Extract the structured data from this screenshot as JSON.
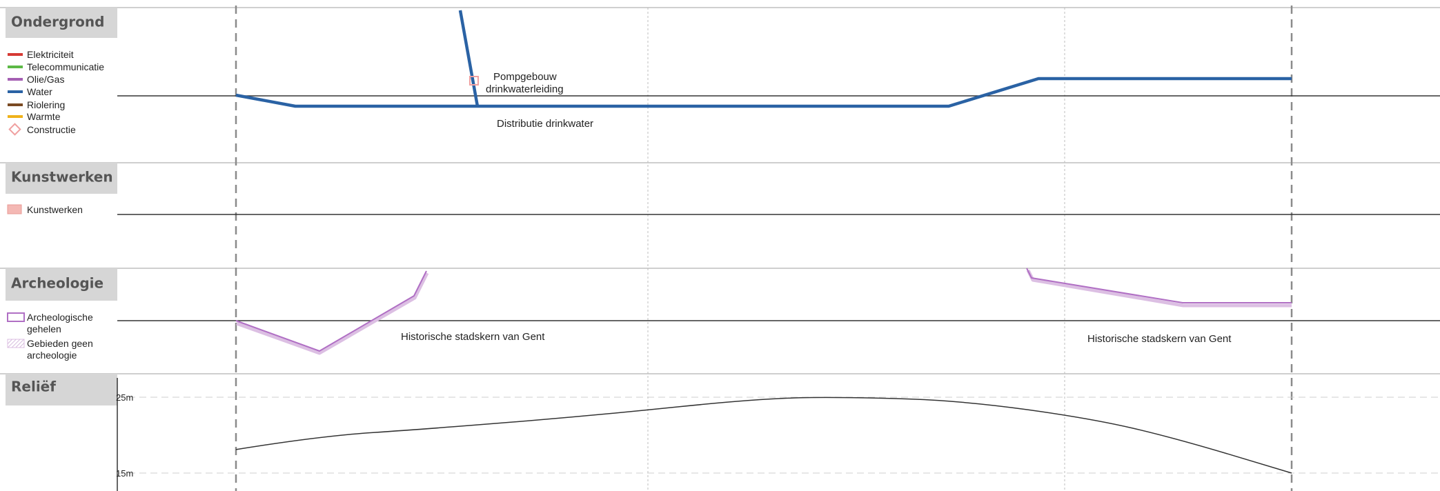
{
  "sections": {
    "ondergrond": {
      "title": "Ondergrond",
      "legend": [
        {
          "label": "Elektriciteit",
          "color": "#d63a34",
          "symbol": "line"
        },
        {
          "label": "Telecommunicatie",
          "color": "#5cb946",
          "symbol": "line"
        },
        {
          "label": "Olie/Gas",
          "color": "#a55fb3",
          "symbol": "line"
        },
        {
          "label": "Water",
          "color": "#2a62a4",
          "symbol": "line"
        },
        {
          "label": "Riolering",
          "color": "#7a4a22",
          "symbol": "line"
        },
        {
          "label": "Warmte",
          "color": "#f0b21a",
          "symbol": "line"
        },
        {
          "label": "Constructie",
          "color": "#f0a0a0",
          "symbol": "diamond"
        }
      ],
      "annotations": {
        "pomp_line1": "Pompgebouw",
        "pomp_line2": "drinkwaterleiding",
        "distributie": "Distributie drinkwater"
      }
    },
    "kunstwerken": {
      "title": "Kunstwerken",
      "legend_label": "Kunstwerken",
      "legend_color": "#f4b8b4"
    },
    "archeologie": {
      "title": "Archeologie",
      "legend": [
        {
          "lines": [
            "Archeologische",
            "gehelen"
          ],
          "color": "#b06fc4",
          "symbol": "box"
        },
        {
          "lines": [
            "Gebieden geen",
            "archeologie"
          ],
          "color": "#c9a6d3",
          "symbol": "hatch"
        }
      ],
      "annotation_left": "Historische stadskern van Gent",
      "annotation_right": "Historische stadskern van Gent"
    },
    "relief": {
      "title": "Reliëf",
      "tick_top": "25m",
      "tick_bottom": "15m"
    }
  },
  "colors": {
    "water": "#2a62a4",
    "archeologie": "#b06fc4",
    "archeologie_shadow": "#dcbfe3",
    "title_box": "#d6d6d6",
    "section_divider": "#cfcfcf",
    "guide_dash": "#8a8a8a",
    "guide_dotted": "#bdbdbd"
  },
  "chart_data": {
    "type": "line",
    "title": "Reliëf",
    "y_ticks": [
      "25m",
      "15m"
    ],
    "ylim": [
      15,
      25
    ],
    "x_positions": [
      0,
      0.08,
      0.18,
      0.34,
      0.5,
      0.59,
      0.69,
      0.81,
      0.89,
      1.0
    ],
    "values": [
      18.1,
      19.9,
      20.8,
      22.6,
      24.9,
      25.0,
      24.5,
      22.2,
      19.6,
      15.0
    ]
  }
}
